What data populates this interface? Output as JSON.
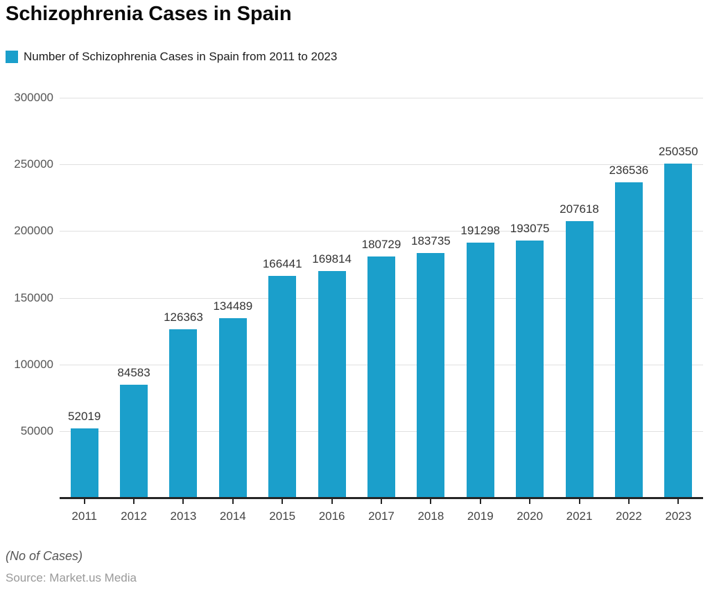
{
  "header": {
    "title": "Schizophrenia Cases in Spain",
    "legend_label": "Number of Schizophrenia Cases in Spain from 2011 to 2023"
  },
  "chart_data": {
    "type": "bar",
    "title": "Schizophrenia Cases in Spain",
    "legend": "Number of Schizophrenia Cases in Spain from 2011 to 2023",
    "legend_position": "top-left",
    "categories": [
      "2011",
      "2012",
      "2013",
      "2014",
      "2015",
      "2016",
      "2017",
      "2018",
      "2019",
      "2020",
      "2021",
      "2022",
      "2023"
    ],
    "values": [
      52019,
      84583,
      126363,
      134489,
      166441,
      169814,
      180729,
      183735,
      191298,
      193075,
      207618,
      236536,
      250350
    ],
    "xlabel": "",
    "ylabel": "(No of Cases)",
    "ylim": [
      0,
      300000
    ],
    "yticks": [
      50000,
      100000,
      150000,
      200000,
      250000,
      300000
    ],
    "grid": true,
    "data_labels": true
  },
  "colors": {
    "bar": "#1b9fcb",
    "gridline": "#e0e0e0",
    "axis": "#262626"
  },
  "footer": {
    "axis_note": "(No of Cases)",
    "source": "Source: Market.us Media"
  }
}
